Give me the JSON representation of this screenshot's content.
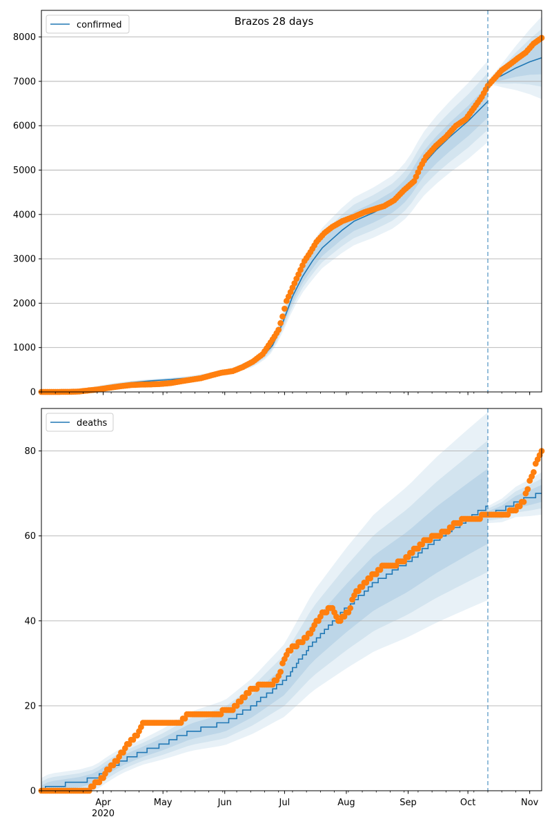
{
  "figure": {
    "title": "Brazos 28 days"
  },
  "colors": {
    "model_line": "#1f77b4",
    "observed_points": "#ff7f0e",
    "band": "#1f77b4",
    "grid": "#b0b0b0",
    "forecast_marker": "#1f77b4"
  },
  "chart_data": [
    {
      "type": "line",
      "title": "Brazos 28 days",
      "xlabel": "",
      "ylabel": "",
      "x_range": [
        "2020-03-01",
        "2020-11-07"
      ],
      "ylim": [
        0,
        8600
      ],
      "yticks": [
        0,
        1000,
        2000,
        3000,
        4000,
        5000,
        6000,
        7000,
        8000
      ],
      "y_tick_labels": [
        "0",
        "1000",
        "2000",
        "3000",
        "4000",
        "5000",
        "6000",
        "7000",
        "8000"
      ],
      "x_tick_labels": [],
      "grid": "y",
      "legend": {
        "placement": "top-left",
        "entries": [
          "confirmed"
        ]
      },
      "forecast_start": "2020-10-11",
      "series": [
        {
          "name": "confirmed",
          "kind": "model-median",
          "points": [
            [
              "2020-03-01",
              0
            ],
            [
              "2020-03-15",
              8
            ],
            [
              "2020-03-25",
              60
            ],
            [
              "2020-04-05",
              150
            ],
            [
              "2020-04-15",
              210
            ],
            [
              "2020-04-25",
              250
            ],
            [
              "2020-05-05",
              280
            ],
            [
              "2020-05-15",
              320
            ],
            [
              "2020-05-25",
              380
            ],
            [
              "2020-06-05",
              480
            ],
            [
              "2020-06-15",
              650
            ],
            [
              "2020-06-20",
              800
            ],
            [
              "2020-06-25",
              1050
            ],
            [
              "2020-06-30",
              1550
            ],
            [
              "2020-07-05",
              2150
            ],
            [
              "2020-07-10",
              2600
            ],
            [
              "2020-07-15",
              2950
            ],
            [
              "2020-07-20",
              3250
            ],
            [
              "2020-07-25",
              3450
            ],
            [
              "2020-07-30",
              3650
            ],
            [
              "2020-08-05",
              3850
            ],
            [
              "2020-08-15",
              4050
            ],
            [
              "2020-08-25",
              4300
            ],
            [
              "2020-09-01",
              4600
            ],
            [
              "2020-09-08",
              5100
            ],
            [
              "2020-09-15",
              5450
            ],
            [
              "2020-09-22",
              5750
            ],
            [
              "2020-10-01",
              6100
            ],
            [
              "2020-10-11",
              6550
            ]
          ]
        },
        {
          "kind": "forecast-median",
          "points": [
            [
              "2020-10-11",
              6980
            ],
            [
              "2020-10-18",
              7130
            ],
            [
              "2020-10-25",
              7300
            ],
            [
              "2020-11-01",
              7440
            ],
            [
              "2020-11-07",
              7530
            ]
          ]
        },
        {
          "kind": "observed",
          "points": [
            [
              "2020-03-01",
              0
            ],
            [
              "2020-03-08",
              0
            ],
            [
              "2020-03-15",
              2
            ],
            [
              "2020-03-20",
              10
            ],
            [
              "2020-03-25",
              35
            ],
            [
              "2020-03-30",
              60
            ],
            [
              "2020-04-05",
              100
            ],
            [
              "2020-04-10",
              130
            ],
            [
              "2020-04-15",
              155
            ],
            [
              "2020-04-20",
              165
            ],
            [
              "2020-04-25",
              170
            ],
            [
              "2020-04-30",
              180
            ],
            [
              "2020-05-05",
              200
            ],
            [
              "2020-05-10",
              240
            ],
            [
              "2020-05-15",
              275
            ],
            [
              "2020-05-20",
              310
            ],
            [
              "2020-05-25",
              370
            ],
            [
              "2020-05-30",
              430
            ],
            [
              "2020-06-05",
              470
            ],
            [
              "2020-06-10",
              560
            ],
            [
              "2020-06-15",
              680
            ],
            [
              "2020-06-20",
              850
            ],
            [
              "2020-06-23",
              1050
            ],
            [
              "2020-06-26",
              1250
            ],
            [
              "2020-06-28",
              1400
            ],
            [
              "2020-06-30",
              1700
            ],
            [
              "2020-07-02",
              2050
            ],
            [
              "2020-07-05",
              2350
            ],
            [
              "2020-07-08",
              2650
            ],
            [
              "2020-07-11",
              2950
            ],
            [
              "2020-07-14",
              3150
            ],
            [
              "2020-07-17",
              3380
            ],
            [
              "2020-07-21",
              3580
            ],
            [
              "2020-07-25",
              3720
            ],
            [
              "2020-07-30",
              3850
            ],
            [
              "2020-08-05",
              3950
            ],
            [
              "2020-08-10",
              4050
            ],
            [
              "2020-08-15",
              4120
            ],
            [
              "2020-08-20",
              4190
            ],
            [
              "2020-08-25",
              4320
            ],
            [
              "2020-08-30",
              4550
            ],
            [
              "2020-09-04",
              4750
            ],
            [
              "2020-09-07",
              5050
            ],
            [
              "2020-09-10",
              5300
            ],
            [
              "2020-09-15",
              5550
            ],
            [
              "2020-09-20",
              5750
            ],
            [
              "2020-09-25",
              6000
            ],
            [
              "2020-09-30",
              6150
            ],
            [
              "2020-10-04",
              6400
            ],
            [
              "2020-10-08",
              6650
            ],
            [
              "2020-10-11",
              6900
            ],
            [
              "2020-10-14",
              7050
            ],
            [
              "2020-10-18",
              7250
            ],
            [
              "2020-10-22",
              7380
            ],
            [
              "2020-10-26",
              7520
            ],
            [
              "2020-10-30",
              7650
            ],
            [
              "2020-11-03",
              7850
            ],
            [
              "2020-11-07",
              7980
            ]
          ]
        }
      ]
    },
    {
      "type": "line",
      "title": "",
      "xlabel": "",
      "ylabel": "",
      "x_range": [
        "2020-03-01",
        "2020-11-07"
      ],
      "ylim": [
        0,
        90
      ],
      "yticks": [
        0,
        20,
        40,
        60,
        80
      ],
      "y_tick_labels": [
        "0",
        "20",
        "40",
        "60",
        "80"
      ],
      "x_tick_labels": [
        "Apr\n2020",
        "May",
        "Jun",
        "Jul",
        "Aug",
        "Sep",
        "Oct",
        "Nov"
      ],
      "grid": "y",
      "legend": {
        "placement": "top-left",
        "entries": [
          "deaths"
        ]
      },
      "forecast_start": "2020-10-11",
      "series": [
        {
          "name": "deaths",
          "kind": "model-median",
          "points": [
            [
              "2020-03-01",
              0
            ],
            [
              "2020-03-05",
              1
            ],
            [
              "2020-03-20",
              2
            ],
            [
              "2020-03-28",
              3
            ],
            [
              "2020-04-03",
              5
            ],
            [
              "2020-04-10",
              7
            ],
            [
              "2020-04-20",
              9
            ],
            [
              "2020-05-01",
              11
            ],
            [
              "2020-05-15",
              14
            ],
            [
              "2020-06-01",
              16
            ],
            [
              "2020-06-15",
              20
            ],
            [
              "2020-07-01",
              26
            ],
            [
              "2020-07-15",
              35
            ],
            [
              "2020-08-01",
              43
            ],
            [
              "2020-08-15",
              49
            ],
            [
              "2020-09-01",
              54
            ],
            [
              "2020-09-15",
              59
            ],
            [
              "2020-10-01",
              64
            ],
            [
              "2020-10-11",
              67
            ]
          ]
        },
        {
          "kind": "forecast-median",
          "points": [
            [
              "2020-10-11",
              65
            ],
            [
              "2020-10-18",
              66
            ],
            [
              "2020-10-25",
              68
            ],
            [
              "2020-11-01",
              69
            ],
            [
              "2020-11-07",
              70
            ]
          ]
        },
        {
          "kind": "observed",
          "points": [
            [
              "2020-03-01",
              0
            ],
            [
              "2020-03-10",
              0
            ],
            [
              "2020-03-20",
              0
            ],
            [
              "2020-03-25",
              0
            ],
            [
              "2020-03-27",
              1
            ],
            [
              "2020-03-29",
              2
            ],
            [
              "2020-04-01",
              3
            ],
            [
              "2020-04-03",
              5
            ],
            [
              "2020-04-06",
              6
            ],
            [
              "2020-04-09",
              8
            ],
            [
              "2020-04-12",
              10
            ],
            [
              "2020-04-15",
              12
            ],
            [
              "2020-04-18",
              13
            ],
            [
              "2020-04-21",
              16
            ],
            [
              "2020-04-30",
              16
            ],
            [
              "2020-05-10",
              16
            ],
            [
              "2020-05-14",
              18
            ],
            [
              "2020-05-25",
              18
            ],
            [
              "2020-06-05",
              19
            ],
            [
              "2020-06-10",
              22
            ],
            [
              "2020-06-15",
              24
            ],
            [
              "2020-06-20",
              25
            ],
            [
              "2020-06-25",
              25
            ],
            [
              "2020-06-28",
              27
            ],
            [
              "2020-07-01",
              31
            ],
            [
              "2020-07-05",
              34
            ],
            [
              "2020-07-10",
              35
            ],
            [
              "2020-07-15",
              38
            ],
            [
              "2020-07-20",
              42
            ],
            [
              "2020-07-25",
              43
            ],
            [
              "2020-07-28",
              40
            ],
            [
              "2020-08-02",
              42
            ],
            [
              "2020-08-05",
              46
            ],
            [
              "2020-08-10",
              49
            ],
            [
              "2020-08-15",
              51
            ],
            [
              "2020-08-20",
              53
            ],
            [
              "2020-08-25",
              53
            ],
            [
              "2020-09-01",
              55
            ],
            [
              "2020-09-05",
              57
            ],
            [
              "2020-09-10",
              59
            ],
            [
              "2020-09-15",
              60
            ],
            [
              "2020-09-20",
              61
            ],
            [
              "2020-09-25",
              63
            ],
            [
              "2020-10-01",
              64
            ],
            [
              "2020-10-05",
              64
            ],
            [
              "2020-10-11",
              65
            ],
            [
              "2020-10-18",
              65
            ],
            [
              "2020-10-25",
              66
            ],
            [
              "2020-10-29",
              68
            ],
            [
              "2020-11-01",
              73
            ],
            [
              "2020-11-03",
              75
            ],
            [
              "2020-11-05",
              78
            ],
            [
              "2020-11-07",
              80
            ]
          ]
        }
      ]
    }
  ]
}
